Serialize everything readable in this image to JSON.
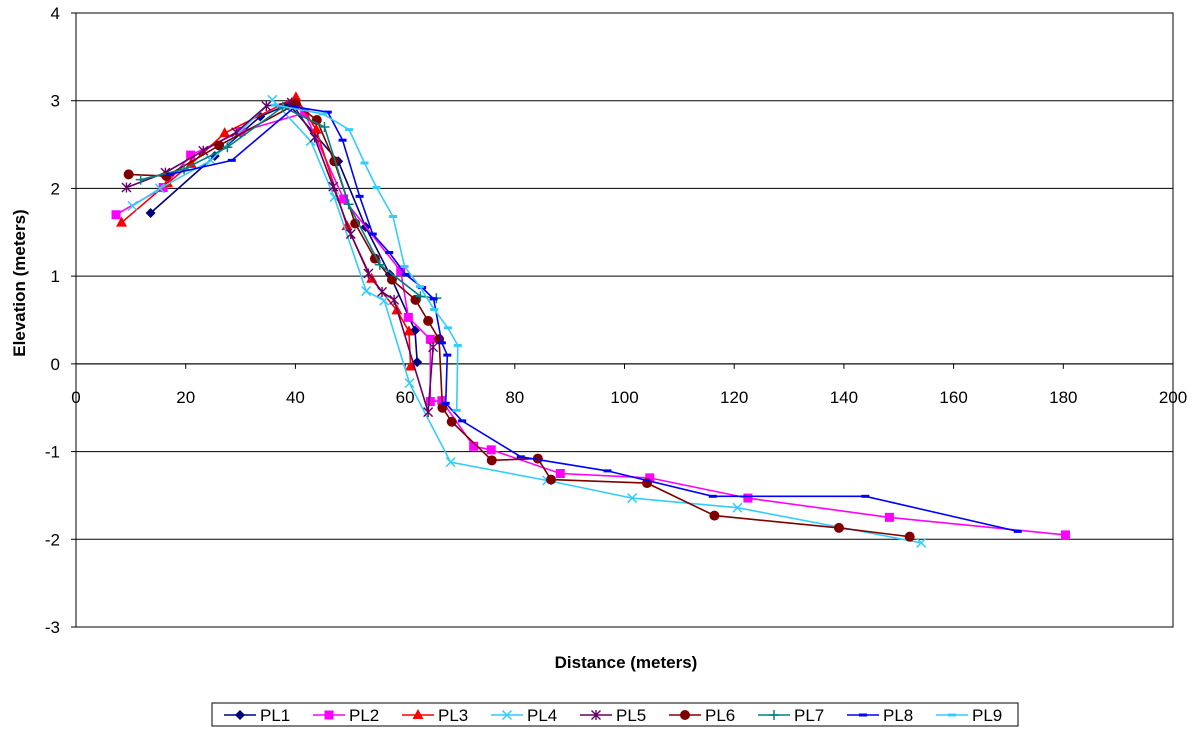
{
  "chart_data": {
    "type": "scatter",
    "title": "",
    "xlabel": "Distance (meters)",
    "ylabel": "Elevation (meters)",
    "xlim": [
      0,
      200
    ],
    "ylim": [
      -3,
      4
    ],
    "xticks": [
      0,
      20,
      40,
      60,
      80,
      100,
      120,
      140,
      160,
      180,
      200
    ],
    "yticks": [
      -3,
      -2,
      -1,
      0,
      1,
      2,
      3,
      4
    ],
    "grid": "horizontal major gridlines",
    "legend_position": "bottom",
    "series": [
      {
        "name": "PL1",
        "color": "#000080",
        "marker": "diamond",
        "x": [
          13.6,
          25.3,
          33.6,
          38.8,
          47.8,
          52.8,
          57.2,
          61.8,
          62.2
        ],
        "y": [
          1.72,
          2.37,
          2.82,
          2.96,
          2.31,
          1.56,
          1.02,
          0.38,
          0.02
        ]
      },
      {
        "name": "PL2",
        "color": "#FF00FF",
        "marker": "square",
        "x": [
          7.3,
          15.9,
          20.9,
          30.1,
          41.7,
          48.8,
          59.2,
          60.6,
          64.6,
          64.6,
          66.7,
          72.5,
          75.7,
          88.3,
          104.6,
          122.5,
          148.3,
          180.4
        ],
        "y": [
          1.7,
          2.01,
          2.38,
          2.65,
          2.86,
          1.88,
          1.06,
          0.53,
          0.28,
          -0.43,
          -0.42,
          -0.94,
          -0.98,
          -1.25,
          -1.3,
          -1.53,
          -1.75,
          -1.95
        ]
      },
      {
        "name": "PL3",
        "color": "#FF0000",
        "marker": "triangle",
        "x": [
          8.3,
          16.7,
          21.0,
          27.1,
          40.1,
          43.8,
          49.4,
          53.9,
          58.5,
          60.7,
          61.0
        ],
        "y": [
          1.61,
          2.06,
          2.28,
          2.63,
          3.04,
          2.67,
          1.57,
          0.97,
          0.61,
          0.37,
          -0.03
        ]
      },
      {
        "name": "PL4",
        "color": "#33CCFF",
        "marker": "x",
        "x": [
          10.3,
          15.3,
          24.6,
          35.8,
          42.8,
          47.1,
          52.9,
          56.2,
          60.8,
          68.3,
          85.9,
          101.4,
          120.6,
          154.1
        ],
        "y": [
          1.8,
          2.0,
          2.32,
          3.01,
          2.54,
          1.9,
          0.83,
          0.72,
          -0.22,
          -1.12,
          -1.33,
          -1.53,
          -1.64,
          -2.04
        ]
      },
      {
        "name": "PL5",
        "color": "#660066",
        "marker": "asterisk",
        "x": [
          9.2,
          16.3,
          23.2,
          29.2,
          34.7,
          39.3,
          43.5,
          46.9,
          50.1,
          53.3,
          55.8,
          58.0,
          64.2,
          65.1
        ],
        "y": [
          2.01,
          2.18,
          2.43,
          2.64,
          2.94,
          2.98,
          2.58,
          2.02,
          1.48,
          1.03,
          0.82,
          0.73,
          -0.55,
          0.19
        ]
      },
      {
        "name": "PL6",
        "color": "#800000",
        "marker": "circle",
        "x": [
          9.6,
          16.5,
          26.1,
          40.1,
          43.9,
          47.1,
          50.9,
          54.5,
          57.6,
          61.9,
          64.2,
          66.2,
          66.8,
          68.5,
          75.8,
          84.2,
          86.6,
          104.1,
          116.4,
          139.1,
          152.0
        ],
        "y": [
          2.16,
          2.14,
          2.49,
          2.96,
          2.78,
          2.31,
          1.6,
          1.2,
          0.96,
          0.73,
          0.49,
          0.28,
          -0.5,
          -0.66,
          -1.1,
          -1.08,
          -1.32,
          -1.36,
          -1.73,
          -1.87,
          -1.97
        ]
      },
      {
        "name": "PL7",
        "color": "#008080",
        "marker": "plus",
        "x": [
          11.8,
          19.7,
          27.6,
          37.7,
          45.3,
          49.7,
          55.4,
          62.8,
          65.7
        ],
        "y": [
          2.1,
          2.22,
          2.47,
          2.93,
          2.7,
          1.82,
          1.13,
          0.77,
          0.75
        ]
      },
      {
        "name": "PL8",
        "color": "#0000FF",
        "marker": "dash",
        "x": [
          17.1,
          28.4,
          39.9,
          45.9,
          48.6,
          51.7,
          54.1,
          57.1,
          60.1,
          63.1,
          65.2,
          66.7,
          67.7,
          67.4,
          70.4,
          81.1,
          96.9,
          116.1,
          143.9,
          171.7
        ],
        "y": [
          2.16,
          2.32,
          2.93,
          2.87,
          2.55,
          1.91,
          1.48,
          1.27,
          1.02,
          0.87,
          0.74,
          0.24,
          0.1,
          -0.45,
          -0.65,
          -1.06,
          -1.22,
          -1.51,
          -1.51,
          -1.91
        ]
      },
      {
        "name": "PL9",
        "color": "#33CCFF",
        "marker": "dash",
        "x": [
          36.3,
          45.0,
          49.8,
          52.6,
          54.8,
          57.8,
          59.9,
          62.7,
          65.3,
          67.8,
          69.6,
          69.4
        ],
        "y": [
          2.95,
          2.85,
          2.67,
          2.29,
          2.01,
          1.68,
          1.11,
          0.88,
          0.62,
          0.41,
          0.21,
          -0.53
        ]
      }
    ]
  }
}
